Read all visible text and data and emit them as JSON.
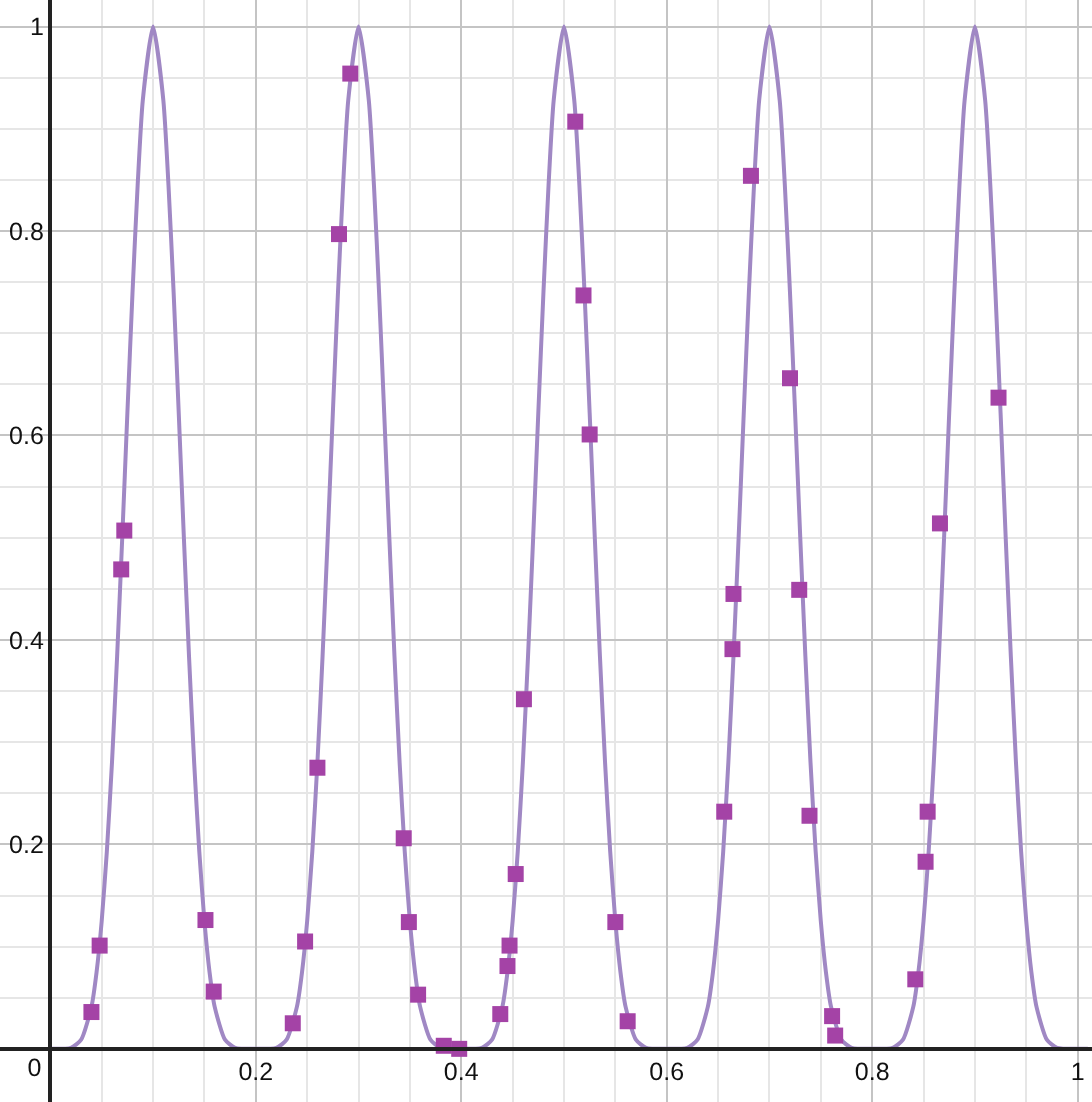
{
  "chart_data": {
    "type": "line",
    "grid": true,
    "xlim": [
      -0.049,
      1.014
    ],
    "ylim": [
      -0.052,
      1.026
    ],
    "xticks": [
      {
        "value": 0,
        "label": "0"
      },
      {
        "value": 0.05,
        "label": null
      },
      {
        "value": 0.1,
        "label": null
      },
      {
        "value": 0.15,
        "label": null
      },
      0.2,
      {
        "value": 0.25,
        "label": null
      },
      {
        "value": 0.3,
        "label": null
      },
      {
        "value": 0.35,
        "label": null
      },
      0.4,
      {
        "value": 0.45,
        "label": null
      },
      {
        "value": 0.5,
        "label": null
      },
      {
        "value": 0.55,
        "label": null
      },
      0.6,
      {
        "value": 0.65,
        "label": null
      },
      {
        "value": 0.7,
        "label": null
      },
      {
        "value": 0.75,
        "label": null
      },
      0.8,
      {
        "value": 0.85,
        "label": null
      },
      {
        "value": 0.9,
        "label": null
      },
      {
        "value": 0.95,
        "label": null
      },
      1
    ],
    "yticks": [
      {
        "value": 0.05,
        "label": null
      },
      {
        "value": 0.1,
        "label": null
      },
      {
        "value": 0.15,
        "label": null
      },
      0.2,
      {
        "value": 0.25,
        "label": null
      },
      {
        "value": 0.3,
        "label": null
      },
      {
        "value": 0.35,
        "label": null
      },
      0.4,
      {
        "value": 0.45,
        "label": null
      },
      {
        "value": 0.5,
        "label": null
      },
      {
        "value": 0.55,
        "label": null
      },
      0.6,
      {
        "value": 0.65,
        "label": null
      },
      {
        "value": 0.7,
        "label": null
      },
      {
        "value": 0.75,
        "label": null
      },
      0.8,
      {
        "value": 0.85,
        "label": null
      },
      {
        "value": 0.9,
        "label": null
      },
      {
        "value": 0.95,
        "label": null
      },
      1
    ],
    "series": [
      {
        "color": "#a088c4",
        "x": [
          0,
          0.02,
          0.03,
          0.04,
          0.045,
          0.05,
          0.055,
          0.06,
          0.065,
          0.07,
          0.075,
          0.08,
          0.085,
          0.09,
          0.1,
          0.11,
          0.115,
          0.12,
          0.125,
          0.13,
          0.135,
          0.14,
          0.145,
          0.15,
          0.155,
          0.16,
          0.17,
          0.18,
          0.2,
          0.22,
          0.23,
          0.24,
          0.245,
          0.25,
          0.255,
          0.26,
          0.265,
          0.27,
          0.275,
          0.28,
          0.285,
          0.29,
          0.3,
          0.31,
          0.315,
          0.32,
          0.325,
          0.33,
          0.335,
          0.34,
          0.345,
          0.35,
          0.355,
          0.36,
          0.37,
          0.38,
          0.4,
          0.42,
          0.43,
          0.44,
          0.445,
          0.45,
          0.455,
          0.46,
          0.465,
          0.47,
          0.475,
          0.48,
          0.485,
          0.49,
          0.5,
          0.51,
          0.515,
          0.52,
          0.525,
          0.53,
          0.535,
          0.54,
          0.545,
          0.55,
          0.555,
          0.56,
          0.57,
          0.58,
          0.6,
          0.62,
          0.63,
          0.64,
          0.645,
          0.65,
          0.655,
          0.66,
          0.665,
          0.67,
          0.675,
          0.68,
          0.685,
          0.69,
          0.7,
          0.71,
          0.715,
          0.72,
          0.725,
          0.73,
          0.735,
          0.74,
          0.745,
          0.75,
          0.755,
          0.76,
          0.77,
          0.78,
          0.8,
          0.82,
          0.83,
          0.84,
          0.845,
          0.85,
          0.855,
          0.86,
          0.865,
          0.87,
          0.875,
          0.88,
          0.885,
          0.89,
          0.9,
          0.91,
          0.915,
          0.92,
          0.925,
          0.93,
          0.935,
          0.94,
          0.945,
          0.95,
          0.955,
          0.96,
          0.97,
          0.98,
          1.0,
          1.01
        ],
        "values": [
          0,
          0.001,
          0.009,
          0.041,
          0.075,
          0.125,
          0.193,
          0.28,
          0.384,
          0.5,
          0.622,
          0.74,
          0.845,
          0.928,
          1,
          0.928,
          0.845,
          0.74,
          0.622,
          0.5,
          0.384,
          0.28,
          0.193,
          0.125,
          0.075,
          0.041,
          0.009,
          0.001,
          0,
          0.001,
          0.009,
          0.041,
          0.075,
          0.125,
          0.193,
          0.28,
          0.384,
          0.5,
          0.622,
          0.74,
          0.845,
          0.928,
          1,
          0.928,
          0.845,
          0.74,
          0.622,
          0.5,
          0.384,
          0.28,
          0.193,
          0.125,
          0.075,
          0.041,
          0.009,
          0.001,
          0,
          0.001,
          0.009,
          0.041,
          0.075,
          0.125,
          0.193,
          0.28,
          0.384,
          0.5,
          0.622,
          0.74,
          0.845,
          0.928,
          1,
          0.928,
          0.845,
          0.74,
          0.622,
          0.5,
          0.384,
          0.28,
          0.193,
          0.125,
          0.075,
          0.041,
          0.009,
          0.001,
          0,
          0.001,
          0.009,
          0.041,
          0.075,
          0.125,
          0.193,
          0.28,
          0.384,
          0.5,
          0.622,
          0.74,
          0.845,
          0.928,
          1,
          0.928,
          0.845,
          0.74,
          0.622,
          0.5,
          0.384,
          0.28,
          0.193,
          0.125,
          0.075,
          0.041,
          0.009,
          0.001,
          0,
          0.001,
          0.009,
          0.041,
          0.075,
          0.125,
          0.193,
          0.28,
          0.384,
          0.5,
          0.622,
          0.74,
          0.845,
          0.928,
          1,
          0.928,
          0.845,
          0.74,
          0.622,
          0.5,
          0.384,
          0.28,
          0.193,
          0.125,
          0.075,
          0.041,
          0.009,
          0.001,
          0,
          0
        ]
      },
      {
        "type": "scatter",
        "color": "#a443a6",
        "marker": "square",
        "x": [
          0.04,
          0.048,
          0.069,
          0.072,
          0.151,
          0.159,
          0.236,
          0.248,
          0.26,
          0.281,
          0.292,
          0.344,
          0.349,
          0.358,
          0.383,
          0.398,
          0.438,
          0.445,
          0.447,
          0.453,
          0.461,
          0.511,
          0.519,
          0.525,
          0.55,
          0.562,
          0.656,
          0.664,
          0.665,
          0.682,
          0.72,
          0.729,
          0.739,
          0.761,
          0.764,
          0.842,
          0.852,
          0.854,
          0.866,
          0.923
        ],
        "values": [
          0.036,
          0.101,
          0.469,
          0.507,
          0.126,
          0.056,
          0.025,
          0.105,
          0.275,
          0.797,
          0.954,
          0.206,
          0.124,
          0.053,
          0.003,
          0,
          0.034,
          0.081,
          0.101,
          0.171,
          0.342,
          0.907,
          0.737,
          0.601,
          0.124,
          0.027,
          0.232,
          0.391,
          0.445,
          0.854,
          0.656,
          0.449,
          0.228,
          0.032,
          0.013,
          0.068,
          0.183,
          0.232,
          0.514,
          0.637
        ]
      }
    ]
  }
}
